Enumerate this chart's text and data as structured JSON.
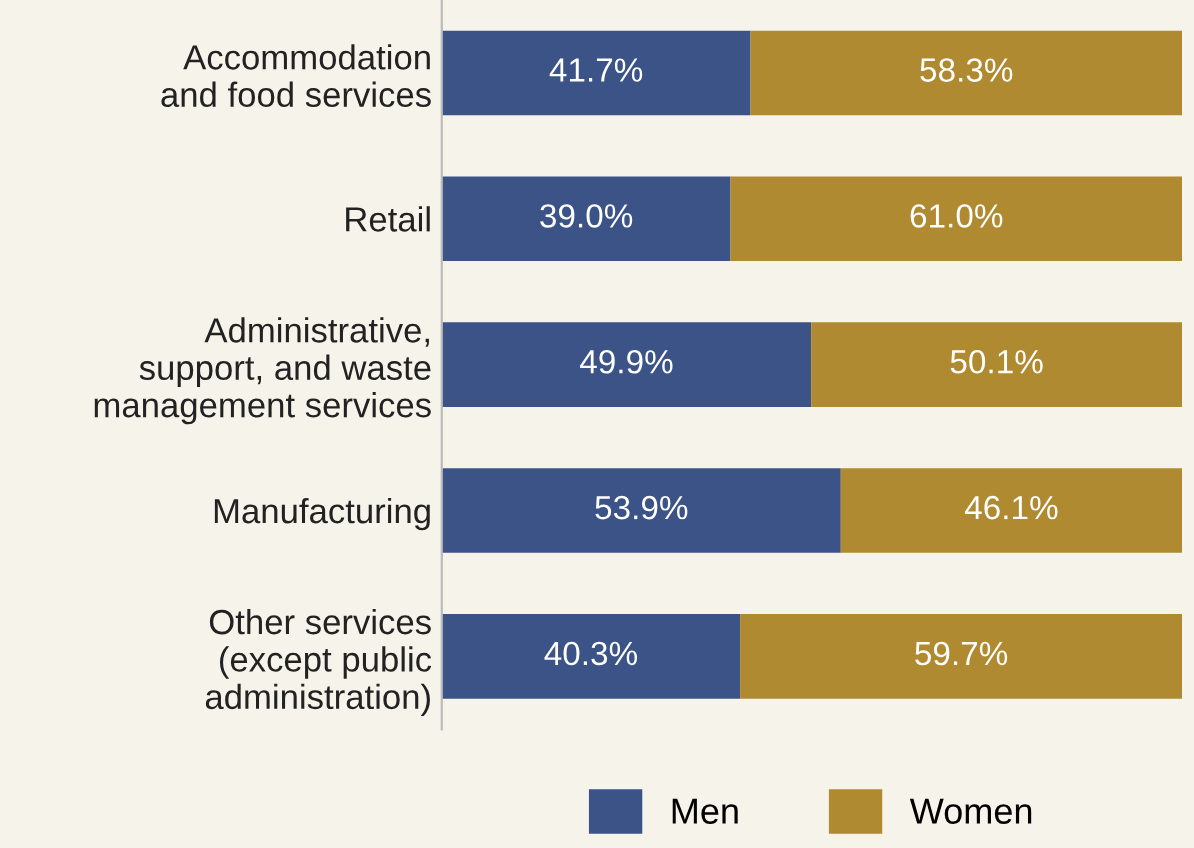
{
  "chart_data": {
    "type": "bar",
    "orientation": "horizontal",
    "stacked": true,
    "categories": [
      "Accommodation\nand food services",
      "Retail",
      "Administrative,\nsupport, and waste\nmanagement services",
      "Manufacturing",
      "Other services\n(except public\nadministration)"
    ],
    "series": [
      {
        "name": "Men",
        "color": "#3c5388",
        "values": [
          41.7,
          39.0,
          49.9,
          53.9,
          40.3
        ],
        "value_labels": [
          "41.7%",
          "39.0%",
          "49.9%",
          "53.9%",
          "40.3%"
        ]
      },
      {
        "name": "Women",
        "color": "#b08a31",
        "values": [
          58.3,
          61.0,
          50.1,
          46.1,
          59.7
        ],
        "value_labels": [
          "58.3%",
          "61.0%",
          "50.1%",
          "46.1%",
          "59.7%"
        ]
      }
    ],
    "xlim": [
      0,
      100
    ],
    "tick_labels": "y",
    "grid": false,
    "legend": "bottom"
  }
}
